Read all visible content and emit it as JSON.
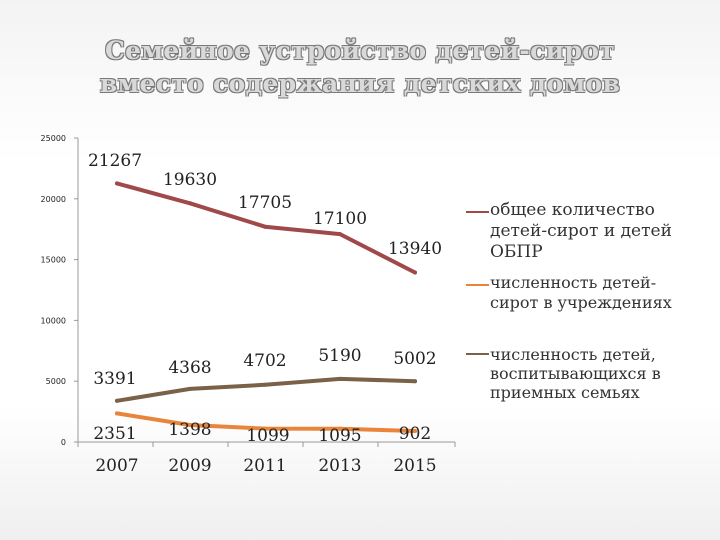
{
  "title": {
    "line1": "Семейное устройство детей-сирот",
    "line2": "вместо содержания детских домов"
  },
  "colors": {
    "series1": "#a0494a",
    "series2": "#e8853a",
    "series3": "#7a6148",
    "axis": "#999999",
    "text": "#222222"
  },
  "chart_data": {
    "type": "line",
    "x": [
      "2007",
      "2009",
      "2011",
      "2013",
      "2015"
    ],
    "ylim": [
      0,
      25000
    ],
    "yticks": [
      "0",
      "5000",
      "10000",
      "15000",
      "20000",
      "25000"
    ],
    "grid": false,
    "legend_position": "right",
    "series": [
      {
        "name": "общее количество детей-сирот и детей ОБПР",
        "values": [
          21267,
          19630,
          17705,
          17100,
          13940
        ],
        "labels": [
          "21267",
          "19630",
          "17705",
          "17100",
          "13940"
        ]
      },
      {
        "name": "численность детей-сирот в учреждениях",
        "values": [
          2351,
          1398,
          1099,
          1095,
          902
        ],
        "labels": [
          "2351",
          "1398",
          "1099",
          "1095",
          "902"
        ]
      },
      {
        "name": "численность детей, воспитывающихся в приемных семьях",
        "values": [
          3391,
          4368,
          4702,
          5190,
          5002
        ],
        "labels": [
          "3391",
          "4368",
          "4702",
          "5190",
          "5002"
        ]
      }
    ]
  }
}
